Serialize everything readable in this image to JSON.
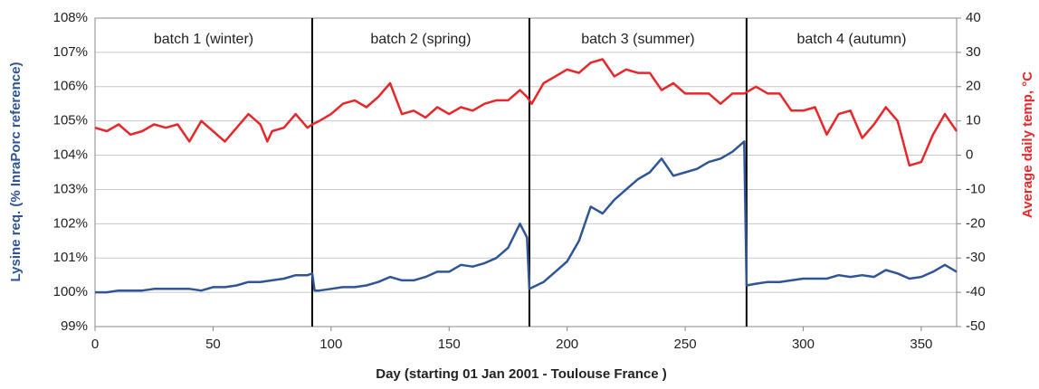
{
  "chart_data": {
    "type": "line",
    "x_label": "Day (starting 01 Jan 2001 - Toulouse France )",
    "y_label": "Lysine req. (% InraPorc reference)",
    "y2_label": "Average daily temp, °C",
    "xlim": [
      0,
      365
    ],
    "xticks": [
      0,
      50,
      100,
      150,
      200,
      250,
      300,
      350
    ],
    "ylim": [
      99,
      108
    ],
    "yticks": [
      {
        "value": 99,
        "label": "99%"
      },
      {
        "value": 100,
        "label": "100%"
      },
      {
        "value": 101,
        "label": "101%"
      },
      {
        "value": 102,
        "label": "102%"
      },
      {
        "value": 103,
        "label": "103%"
      },
      {
        "value": 104,
        "label": "104%"
      },
      {
        "value": 105,
        "label": "105%"
      },
      {
        "value": 106,
        "label": "106%"
      },
      {
        "value": 107,
        "label": "107%"
      },
      {
        "value": 108,
        "label": "108%"
      }
    ],
    "y2lim": [
      -50,
      40
    ],
    "y2ticks": [
      -50,
      -40,
      -30,
      -20,
      -10,
      0,
      10,
      20,
      30,
      40
    ],
    "grid": true,
    "batches": [
      {
        "label": "batch 1 (winter)",
        "start": 0
      },
      {
        "label": "batch 2 (spring)",
        "start": 92
      },
      {
        "label": "batch 3 (summer)",
        "start": 184
      },
      {
        "label": "batch 4 (autumn)",
        "start": 276
      }
    ],
    "series": [
      {
        "name": "Lysine req.",
        "color": "#2f5597",
        "x": [
          0,
          5,
          10,
          15,
          20,
          25,
          30,
          35,
          40,
          45,
          50,
          55,
          60,
          65,
          70,
          75,
          80,
          85,
          90,
          92,
          93,
          95,
          100,
          105,
          110,
          115,
          120,
          125,
          130,
          135,
          140,
          145,
          150,
          155,
          160,
          165,
          170,
          175,
          180,
          183,
          184,
          190,
          195,
          200,
          205,
          210,
          215,
          220,
          225,
          230,
          235,
          240,
          245,
          250,
          255,
          260,
          265,
          270,
          275,
          276,
          280,
          285,
          290,
          295,
          300,
          305,
          310,
          315,
          320,
          325,
          330,
          335,
          340,
          345,
          350,
          355,
          360,
          365
        ],
        "values": [
          100.0,
          100.0,
          100.05,
          100.05,
          100.05,
          100.1,
          100.1,
          100.1,
          100.1,
          100.05,
          100.15,
          100.15,
          100.2,
          100.3,
          100.3,
          100.35,
          100.4,
          100.5,
          100.5,
          100.55,
          100.05,
          100.05,
          100.1,
          100.15,
          100.15,
          100.2,
          100.3,
          100.45,
          100.35,
          100.35,
          100.45,
          100.6,
          100.6,
          100.8,
          100.75,
          100.85,
          101.0,
          101.3,
          102.0,
          101.6,
          100.1,
          100.3,
          100.6,
          100.9,
          101.5,
          102.5,
          102.3,
          102.7,
          103.0,
          103.3,
          103.5,
          103.9,
          103.4,
          103.5,
          103.6,
          103.8,
          103.9,
          104.1,
          104.4,
          100.2,
          100.25,
          100.3,
          100.3,
          100.35,
          100.4,
          100.4,
          100.4,
          100.5,
          100.45,
          100.5,
          100.45,
          100.65,
          100.55,
          100.4,
          100.45,
          100.6,
          100.8,
          100.6
        ]
      },
      {
        "name": "Average daily temp",
        "color": "#e8272a",
        "axis": "y2",
        "x": [
          0,
          5,
          10,
          15,
          20,
          25,
          30,
          35,
          40,
          45,
          50,
          55,
          60,
          65,
          70,
          73,
          75,
          80,
          85,
          90,
          92,
          95,
          100,
          105,
          110,
          115,
          120,
          125,
          130,
          135,
          140,
          145,
          150,
          155,
          160,
          165,
          170,
          175,
          180,
          183,
          185,
          190,
          195,
          200,
          205,
          210,
          215,
          220,
          225,
          230,
          235,
          240,
          245,
          250,
          255,
          260,
          265,
          270,
          275,
          280,
          285,
          290,
          295,
          300,
          305,
          310,
          315,
          320,
          325,
          330,
          335,
          340,
          345,
          350,
          355,
          360,
          365
        ],
        "values": [
          8,
          7,
          9,
          6,
          7,
          9,
          8,
          9,
          4,
          10,
          7,
          4,
          8,
          12,
          9,
          4,
          7,
          8,
          12,
          8,
          9,
          10,
          12,
          15,
          16,
          14,
          17,
          21,
          12,
          13,
          11,
          14,
          12,
          14,
          13,
          15,
          16,
          16,
          19,
          17,
          15,
          21,
          23,
          25,
          24,
          27,
          28,
          23,
          25,
          24,
          24,
          19,
          21,
          18,
          18,
          18,
          15,
          18,
          18,
          20,
          18,
          18,
          13,
          13,
          14,
          6,
          12,
          13,
          5,
          9,
          14,
          10,
          -3,
          -2,
          6,
          12,
          7
        ]
      }
    ]
  }
}
